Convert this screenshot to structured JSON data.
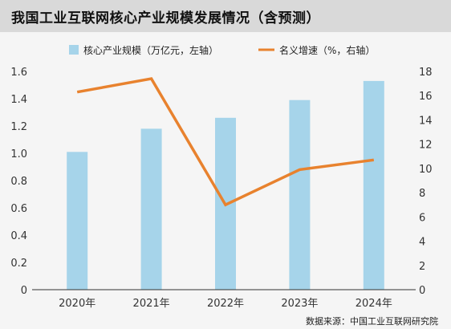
{
  "chart_data": {
    "type": "bar+line",
    "title": "我国工业互联网核心产业规模发展情况（含预测）",
    "source": "数据来源：中国工业互联网研究院",
    "categories": [
      "2020年",
      "2021年",
      "2022年",
      "2023年",
      "2024年"
    ],
    "series": [
      {
        "name": "核心产业规模（万亿元，左轴）",
        "type": "bar",
        "axis": "left",
        "color": "#a6d4ea",
        "values": [
          1.01,
          1.18,
          1.26,
          1.39,
          1.53
        ]
      },
      {
        "name": "名义增速（%，右轴）",
        "type": "line",
        "axis": "right",
        "color": "#e8822e",
        "values": [
          16.3,
          17.4,
          7.0,
          9.9,
          10.7
        ]
      }
    ],
    "left_axis": {
      "min": 0,
      "max": 1.6,
      "ticks": [
        "0",
        "0.2",
        "0.4",
        "0.6",
        "0.8",
        "1.0",
        "1.2",
        "1.4",
        "1.6"
      ]
    },
    "right_axis": {
      "min": 0,
      "max": 18,
      "ticks": [
        "0",
        "2",
        "4",
        "6",
        "8",
        "10",
        "12",
        "14",
        "16",
        "18"
      ]
    },
    "legend_position": "top",
    "grid": false
  }
}
